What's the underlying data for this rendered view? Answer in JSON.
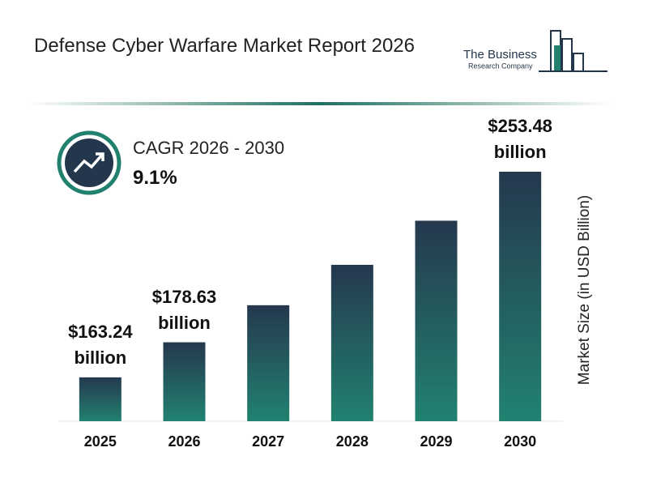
{
  "logo": {
    "name": "The Business",
    "subname": "Research Company"
  },
  "chart_data": {
    "type": "bar",
    "title": "Defense Cyber Warfare Market Report 2026",
    "y_axis_label": "Market Size (in USD Billion)",
    "cagr_label": "CAGR 2026 - 2030",
    "cagr_value": "9.1%",
    "categories": [
      "2025",
      "2026",
      "2027",
      "2028",
      "2029",
      "2030"
    ],
    "values": [
      163.24,
      178.63,
      194.89,
      212.62,
      231.97,
      253.48
    ],
    "value_labels": [
      "$163.24 billion",
      "$178.63 billion",
      null,
      null,
      null,
      "$253.48 billion"
    ],
    "ylim": [
      144,
      262
    ],
    "gradient": [
      "#25384e",
      "#218270"
    ]
  }
}
